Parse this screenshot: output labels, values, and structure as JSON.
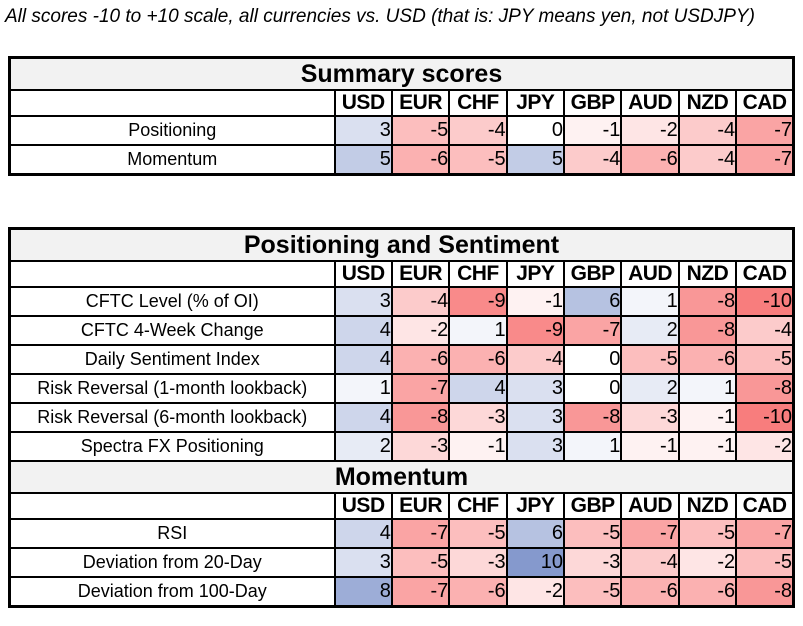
{
  "note": "All scores -10 to +10 scale, all currencies vs. USD (that is: JPY means yen, not USDJPY)",
  "chart_data": {
    "type": "heatmap",
    "scale": {
      "min": -10,
      "max": 10
    },
    "columns": [
      "USD",
      "EUR",
      "CHF",
      "JPY",
      "GBP",
      "AUD",
      "NZD",
      "CAD"
    ],
    "colors": {
      "positive_max": "#8599CD",
      "negative_max": "#F87D7D",
      "zero": "#FFFFFF",
      "section_title_bg": "#F2F2F2",
      "grid": "#000000"
    },
    "tables": [
      {
        "name": "summary-scores-table",
        "sections": [
          {
            "title": "Summary scores",
            "rows": [
              {
                "label": "Positioning",
                "values": [
                  3,
                  -5,
                  -4,
                  0,
                  -1,
                  -2,
                  -4,
                  -7
                ]
              },
              {
                "label": "Momentum",
                "values": [
                  5,
                  -6,
                  -5,
                  5,
                  -4,
                  -6,
                  -4,
                  -7
                ]
              }
            ]
          }
        ]
      },
      {
        "name": "positioning-and-momentum-table",
        "sections": [
          {
            "title": "Positioning and Sentiment",
            "rows": [
              {
                "label": "CFTC Level (% of OI)",
                "values": [
                  3,
                  -4,
                  -9,
                  -1,
                  6,
                  1,
                  -8,
                  -10
                ]
              },
              {
                "label": "CFTC 4-Week Change",
                "values": [
                  4,
                  -2,
                  1,
                  -9,
                  -7,
                  2,
                  -8,
                  -4
                ]
              },
              {
                "label": "Daily Sentiment Index",
                "values": [
                  4,
                  -6,
                  -6,
                  -4,
                  0,
                  -5,
                  -6,
                  -5
                ]
              },
              {
                "label": "Risk Reversal (1-month lookback)",
                "values": [
                  1,
                  -7,
                  4,
                  3,
                  0,
                  2,
                  1,
                  -8
                ]
              },
              {
                "label": "Risk Reversal (6-month lookback)",
                "values": [
                  4,
                  -8,
                  -3,
                  3,
                  -8,
                  -3,
                  -1,
                  -10
                ]
              },
              {
                "label": "Spectra FX Positioning",
                "values": [
                  2,
                  -3,
                  -1,
                  3,
                  1,
                  -1,
                  -1,
                  -2
                ]
              }
            ]
          },
          {
            "title": "Momentum",
            "rows": [
              {
                "label": "RSI",
                "values": [
                  4,
                  -7,
                  -5,
                  6,
                  -5,
                  -7,
                  -5,
                  -7
                ]
              },
              {
                "label": "Deviation from 20-Day",
                "values": [
                  3,
                  -5,
                  -3,
                  10,
                  -3,
                  -4,
                  -2,
                  -5
                ]
              },
              {
                "label": "Deviation from 100-Day",
                "values": [
                  8,
                  -7,
                  -6,
                  -2,
                  -5,
                  -6,
                  -6,
                  -8
                ]
              }
            ]
          }
        ]
      }
    ]
  }
}
